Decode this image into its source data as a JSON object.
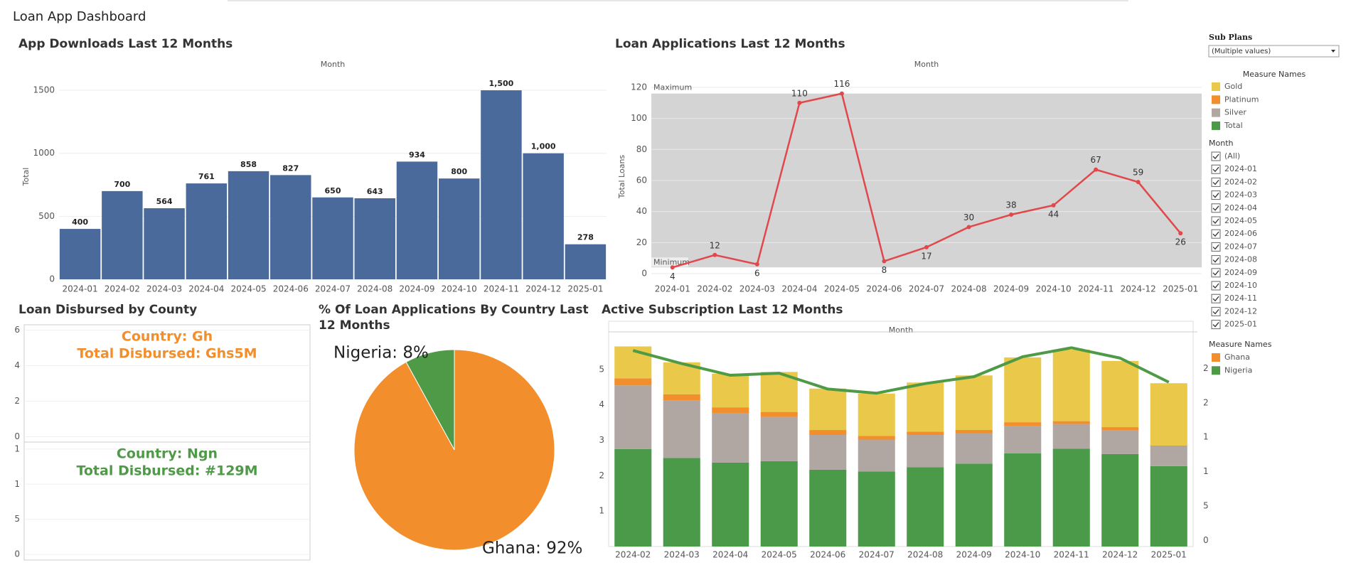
{
  "title": "Loan App Dashboard",
  "chart_data": [
    {
      "type": "bar",
      "title": "App Downloads Last 12 Months",
      "xlabel": "Month",
      "ylabel": "Total",
      "categories": [
        "2024-01",
        "2024-02",
        "2024-03",
        "2024-04",
        "2024-05",
        "2024-06",
        "2024-07",
        "2024-08",
        "2024-09",
        "2024-10",
        "2024-11",
        "2024-12",
        "2025-01"
      ],
      "values": [
        400,
        700,
        564,
        761,
        858,
        827,
        650,
        643,
        934,
        800,
        1500,
        1000,
        278
      ],
      "value_labels": [
        "400",
        "700",
        "564",
        "761",
        "858",
        "827",
        "650",
        "643",
        "934",
        "800",
        "1,500",
        "1,000",
        "278"
      ],
      "color": "#4a6a9c",
      "ylim": [
        0,
        1630
      ],
      "yticks": [
        0,
        500,
        1000,
        1500
      ],
      "grid": true
    },
    {
      "type": "line",
      "title": "Loan Applications Last 12 Months",
      "xlabel": "Month",
      "ylabel": "Total Loans",
      "categories": [
        "2024-01",
        "2024-02",
        "2024-03",
        "2024-04",
        "2024-05",
        "2024-06",
        "2024-07",
        "2024-08",
        "2024-09",
        "2024-10",
        "2024-11",
        "2024-12",
        "2025-01"
      ],
      "values": [
        4,
        12,
        6,
        110,
        116,
        8,
        17,
        30,
        38,
        44,
        67,
        59,
        26
      ],
      "color": "#e0484c",
      "ylim": [
        0,
        125
      ],
      "yticks": [
        0,
        20,
        40,
        60,
        80,
        100,
        120
      ],
      "grid": true,
      "reference_band": {
        "color": "#d4d4d4",
        "labels": [
          "Maximum",
          "Minimum"
        ]
      }
    },
    {
      "type": "text",
      "title": "Loan Disbursed by County",
      "panels": [
        {
          "texts": [
            "Country: Gh",
            "Total Disbursed: Ghs5M"
          ],
          "color": "#f28e2b",
          "ylim": [
            -0.3,
            6.3
          ],
          "yticks": [
            0,
            2,
            4,
            6
          ]
        },
        {
          "texts": [
            "Country: Ngn",
            "Total Disbursed: #129M"
          ],
          "color": "#4e9a47",
          "ylim": [
            -0.8,
            16
          ],
          "yticks": [
            0,
            5,
            {
              "value": 10,
              "label": "1"
            },
            {
              "value": 15,
              "label": "1"
            }
          ]
        }
      ]
    },
    {
      "type": "pie",
      "title": "% Of Loan Applications By Country Last 12 Months",
      "categories": [
        "Nigeria",
        "Ghana"
      ],
      "values": [
        8,
        92
      ],
      "value_labels": [
        "Nigeria: 8%",
        "Ghana: 92%"
      ],
      "colors": [
        "#4e9a47",
        "#f28e2b"
      ]
    },
    {
      "type": "stacked_bar_line",
      "title": "Active Subscription Last 12 Months",
      "xlabel": "Month",
      "categories": [
        "2024-02",
        "2024-03",
        "2024-04",
        "2024-05",
        "2024-06",
        "2024-07",
        "2024-08",
        "2024-09",
        "2024-10",
        "2024-11",
        "2024-12",
        "2025-01"
      ],
      "series": [
        {
          "name": "Gold",
          "color": "#e9c84a",
          "values": [
            0.9,
            0.9,
            0.95,
            1.13,
            1.17,
            1.2,
            1.39,
            1.54,
            1.83,
            2.02,
            1.87,
            1.76
          ]
        },
        {
          "name": "Platinum",
          "color": "#f28e2b",
          "values": [
            0.2,
            0.18,
            0.17,
            0.14,
            0.14,
            0.1,
            0.09,
            0.09,
            0.1,
            0.08,
            0.08,
            0.02
          ]
        },
        {
          "name": "Silver",
          "color": "#b0a6a2",
          "values": [
            1.8,
            1.62,
            1.39,
            1.25,
            0.98,
            0.9,
            0.91,
            0.86,
            0.78,
            0.7,
            0.68,
            0.56
          ]
        },
        {
          "name": "Total",
          "color": "#4a9a4a",
          "values": [
            2.75,
            2.5,
            2.37,
            2.41,
            2.17,
            2.12,
            2.24,
            2.34,
            2.63,
            2.76,
            2.61,
            2.27
          ]
        },
        {
          "name": "Nigeria",
          "type": "line",
          "axis": "y2",
          "color": "#4e9a47",
          "values": [
            27.6,
            25.7,
            24.0,
            24.3,
            22.0,
            21.4,
            22.8,
            23.8,
            26.7,
            28.0,
            26.5,
            23.0
          ]
        }
      ],
      "ylim": [
        0,
        6
      ],
      "yticks": [
        1,
        2,
        3,
        4,
        5
      ],
      "y2lim": [
        -0.9,
        30
      ],
      "y2ticks": [
        0,
        5,
        {
          "value": 10,
          "label": "1"
        },
        {
          "value": 15,
          "label": "1"
        },
        {
          "value": 20,
          "label": "2"
        },
        {
          "value": 25,
          "label": "2"
        }
      ]
    }
  ],
  "sidebar": {
    "sub_plans": {
      "label": "Sub Plans",
      "value": "(Multiple values)"
    },
    "measure_legend_title": "Measure Names",
    "month_filter": {
      "title": "Month",
      "items": [
        "(All)",
        "2024-01",
        "2024-02",
        "2024-03",
        "2024-04",
        "2024-05",
        "2024-06",
        "2024-07",
        "2024-08",
        "2024-09",
        "2024-10",
        "2024-11",
        "2024-12",
        "2025-01"
      ]
    },
    "country_legend": {
      "title": "Measure Names",
      "items": [
        {
          "name": "Ghana",
          "color": "#f28e2b"
        },
        {
          "name": "Nigeria",
          "color": "#4e9a47"
        }
      ]
    }
  }
}
